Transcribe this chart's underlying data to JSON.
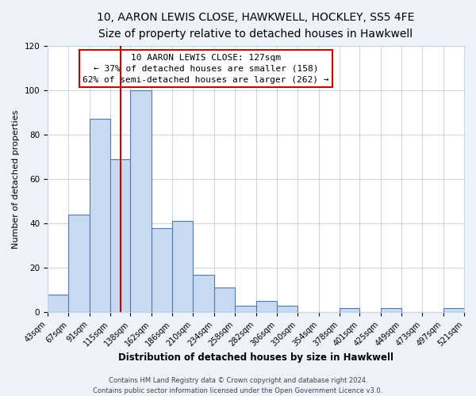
{
  "title": "10, AARON LEWIS CLOSE, HAWKWELL, HOCKLEY, SS5 4FE",
  "subtitle": "Size of property relative to detached houses in Hawkwell",
  "xlabel": "Distribution of detached houses by size in Hawkwell",
  "ylabel": "Number of detached properties",
  "bar_edges": [
    43,
    67,
    91,
    115,
    138,
    162,
    186,
    210,
    234,
    258,
    282,
    306,
    330,
    354,
    378,
    401,
    425,
    449,
    473,
    497,
    521
  ],
  "bar_heights": [
    8,
    44,
    87,
    69,
    100,
    38,
    41,
    17,
    11,
    3,
    5,
    3,
    0,
    0,
    2,
    0,
    2,
    0,
    0,
    2
  ],
  "bar_color": "#c9d9f0",
  "bar_edge_color": "#4f7bb5",
  "vline_x": 127,
  "vline_color": "#cc0000",
  "annotation_title": "10 AARON LEWIS CLOSE: 127sqm",
  "annotation_line1": "← 37% of detached houses are smaller (158)",
  "annotation_line2": "62% of semi-detached houses are larger (262) →",
  "annotation_box_color": "#ffffff",
  "annotation_box_edge": "#cc0000",
  "ylim": [
    0,
    120
  ],
  "xlim": [
    43,
    521
  ],
  "tick_labels": [
    "43sqm",
    "67sqm",
    "91sqm",
    "115sqm",
    "138sqm",
    "162sqm",
    "186sqm",
    "210sqm",
    "234sqm",
    "258sqm",
    "282sqm",
    "306sqm",
    "330sqm",
    "354sqm",
    "378sqm",
    "401sqm",
    "425sqm",
    "449sqm",
    "473sqm",
    "497sqm",
    "521sqm"
  ],
  "footer_line1": "Contains HM Land Registry data © Crown copyright and database right 2024.",
  "footer_line2": "Contains public sector information licensed under the Open Government Licence v3.0.",
  "bg_color": "#eef2fa",
  "plot_bg_color": "#ffffff",
  "grid_color": "#c8d4e8",
  "title_fontsize": 10,
  "subtitle_fontsize": 9,
  "xlabel_fontsize": 8.5,
  "ylabel_fontsize": 8,
  "tick_fontsize": 7,
  "footer_fontsize": 6,
  "annot_fontsize": 8
}
